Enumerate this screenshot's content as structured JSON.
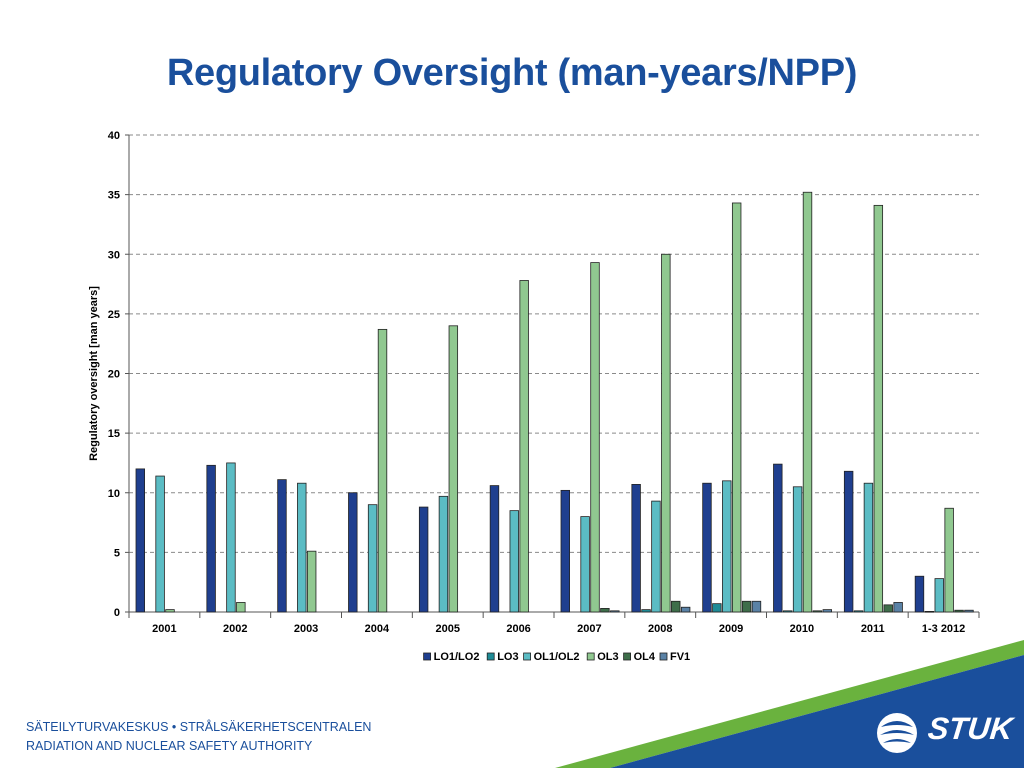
{
  "title": "Regulatory Oversight (man-years/NPP)",
  "footer": {
    "line1": "SÄTEILYTURVAKESKUS • STRÅLSÄKERHETSCENTRALEN",
    "line2": "RADIATION AND NUCLEAR SAFETY AUTHORITY"
  },
  "logo": {
    "text": "STUK",
    "icon": "stuk-logo-icon"
  },
  "colors": {
    "title": "#1a4f9c",
    "stripe_blue": "#1a4f9c",
    "stripe_green": "#6ab23e"
  },
  "chart_data": {
    "type": "bar",
    "title": "",
    "xlabel": "",
    "ylabel": "Regulatory oversight [man years]",
    "ylim": [
      0,
      40
    ],
    "yticks": [
      0,
      5,
      10,
      15,
      20,
      25,
      30,
      35,
      40
    ],
    "grid": true,
    "legend_position": "bottom",
    "categories": [
      "2001",
      "2002",
      "2003",
      "2004",
      "2005",
      "2006",
      "2007",
      "2008",
      "2009",
      "2010",
      "2011",
      "1-3 2012"
    ],
    "series": [
      {
        "name": "LO1/LO2",
        "color": "#1f3f8f",
        "values": [
          12.0,
          12.3,
          11.1,
          10.0,
          8.8,
          10.6,
          10.2,
          10.7,
          10.8,
          12.4,
          11.8,
          3.0
        ]
      },
      {
        "name": "LO3",
        "color": "#1e8b96",
        "values": [
          0,
          0,
          0,
          0,
          0,
          0,
          0,
          0.2,
          0.7,
          0.1,
          0.1,
          0.05
        ]
      },
      {
        "name": "OL1/OL2",
        "color": "#5bbcc4",
        "values": [
          11.4,
          12.5,
          10.8,
          9.0,
          9.7,
          8.5,
          8.0,
          9.3,
          11.0,
          10.5,
          10.8,
          2.8
        ]
      },
      {
        "name": "OL3",
        "color": "#90c890",
        "values": [
          0.2,
          0.8,
          5.1,
          23.7,
          24.0,
          27.8,
          29.3,
          30.0,
          34.3,
          35.2,
          34.1,
          8.7
        ]
      },
      {
        "name": "OL4",
        "color": "#3e6e4a",
        "values": [
          0,
          0,
          0,
          0,
          0,
          0,
          0.3,
          0.9,
          0.9,
          0.1,
          0.6,
          0.15
        ]
      },
      {
        "name": "FV1",
        "color": "#5a82a6",
        "values": [
          0,
          0,
          0,
          0,
          0,
          0,
          0.1,
          0.4,
          0.9,
          0.2,
          0.8,
          0.15
        ]
      }
    ]
  }
}
